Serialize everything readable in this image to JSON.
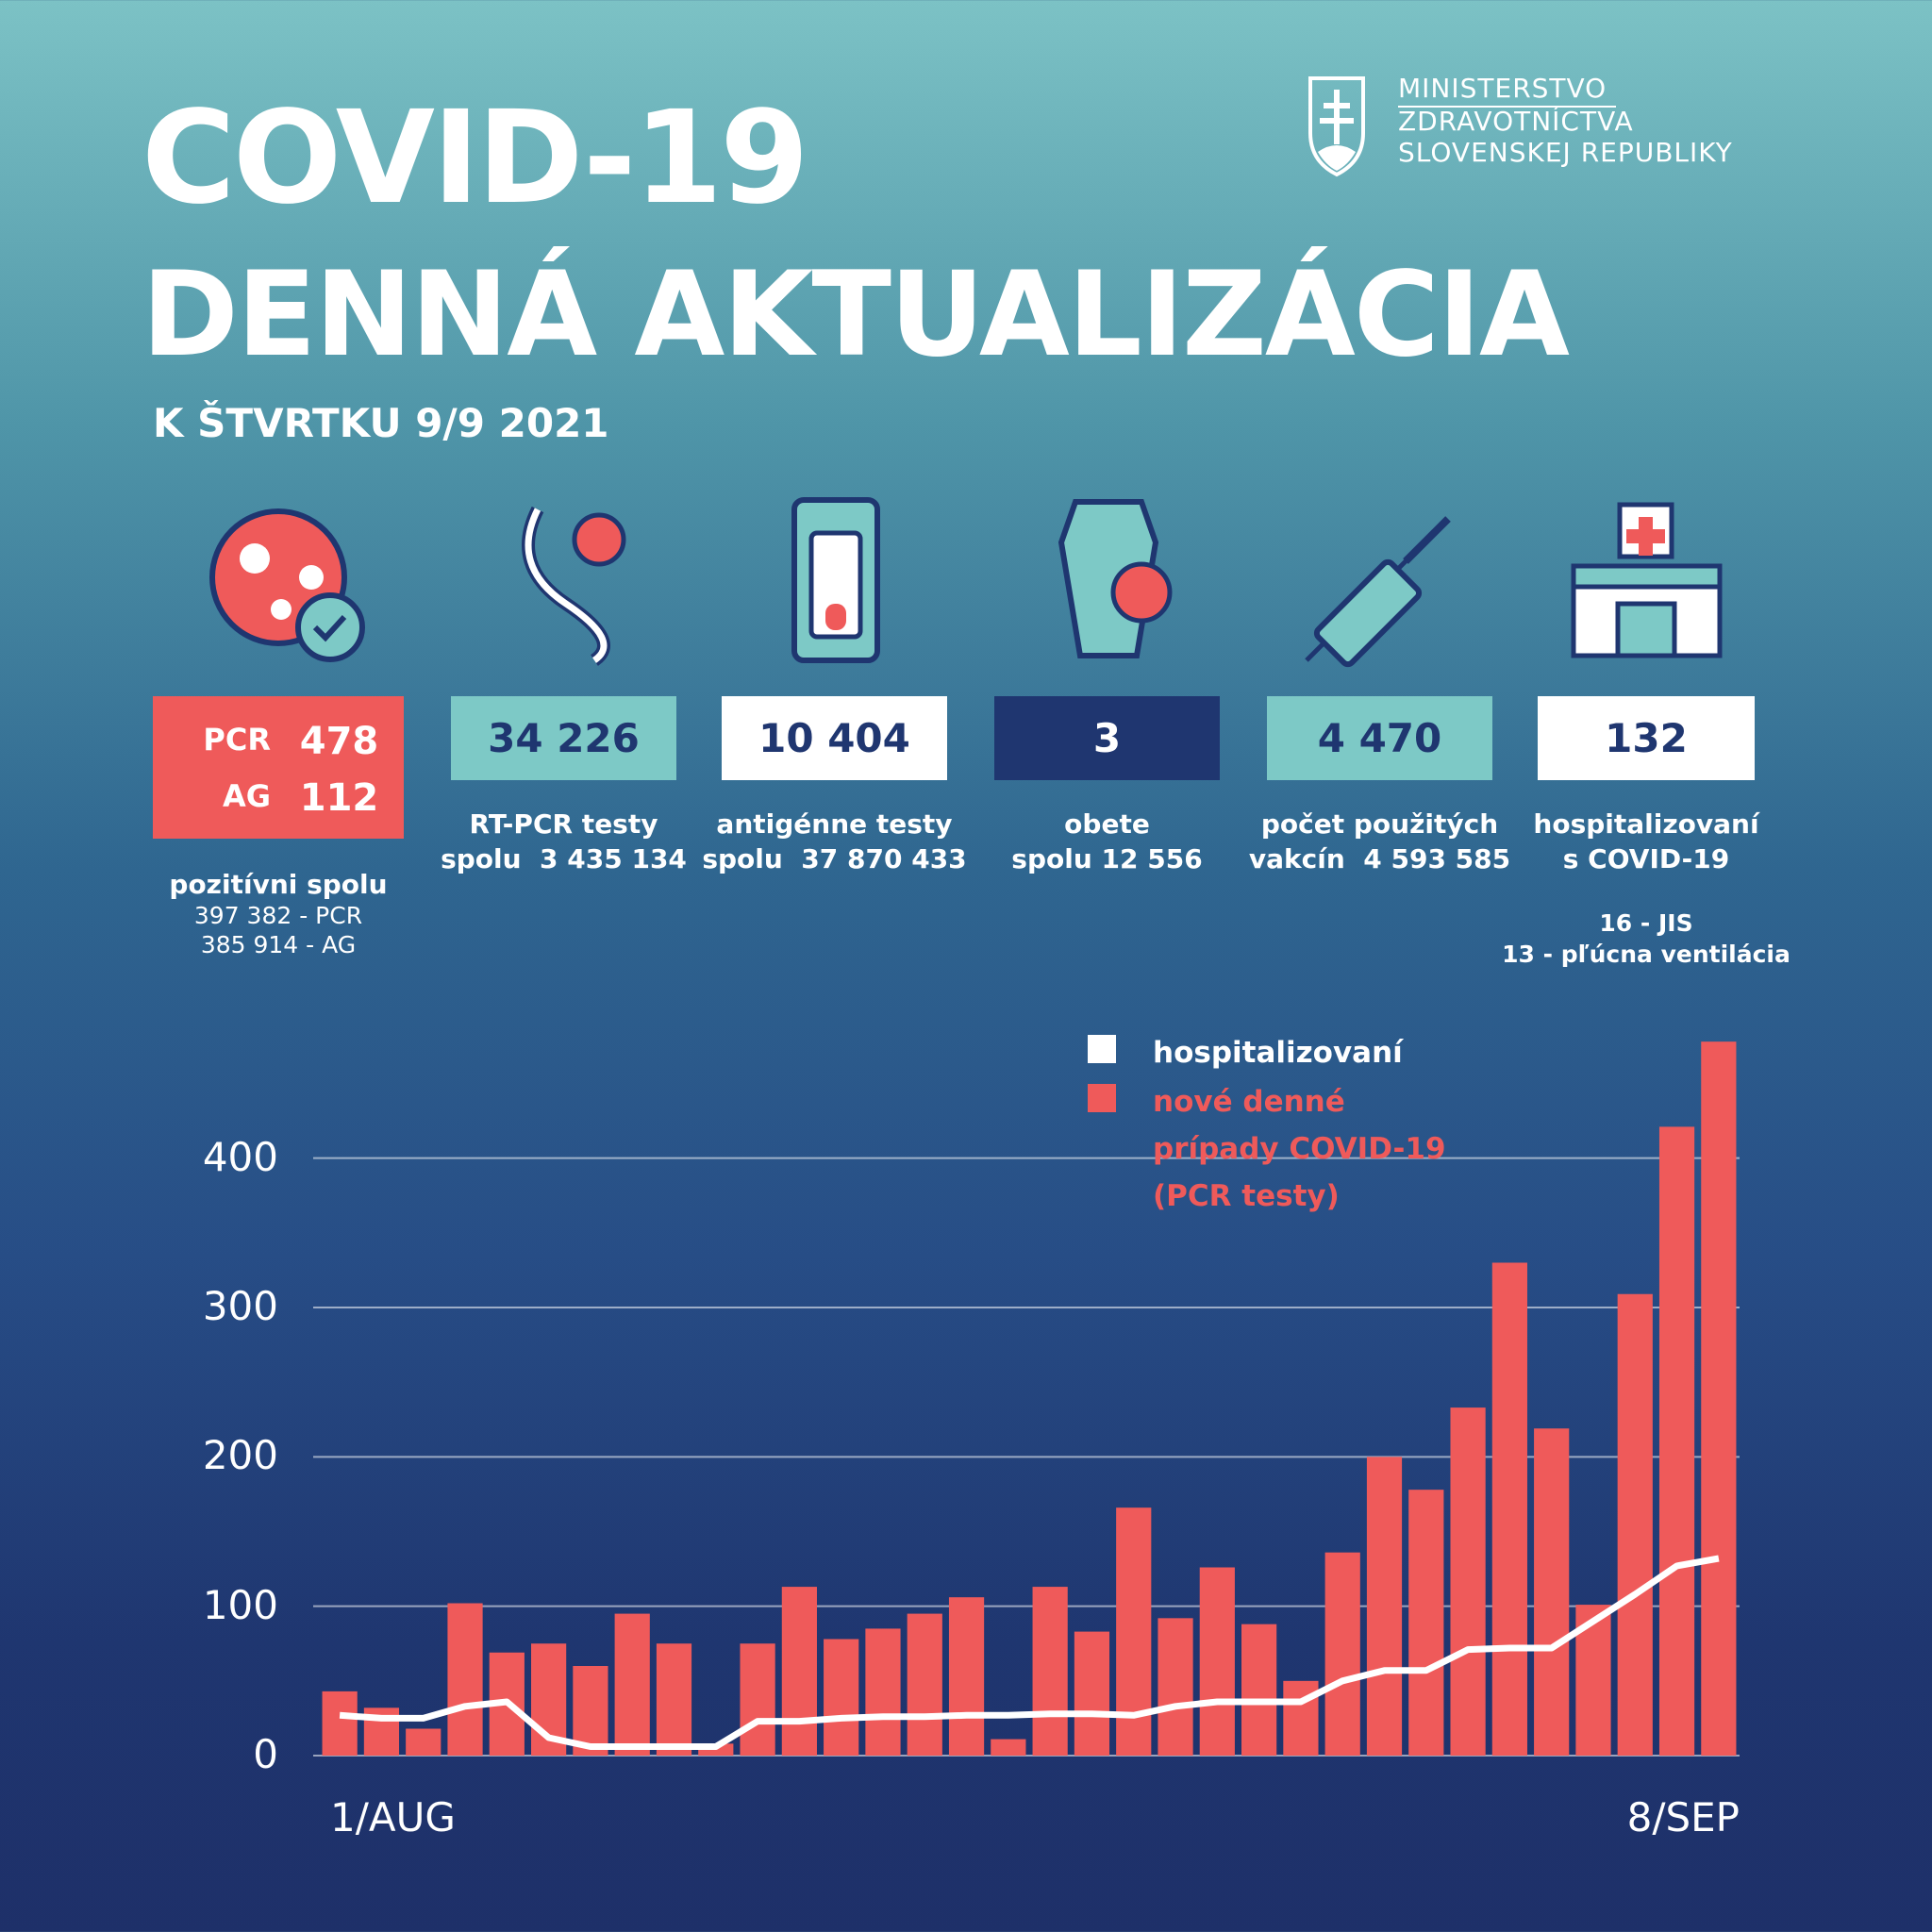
{
  "header": {
    "title": "COVID-19",
    "subtitle": "DENNÁ AKTUALIZÁCIA",
    "date": "K ŠTVRTKU 9/9 2021",
    "ministry": [
      "MINISTERSTVO",
      "ZDRAVOTNÍCTVA",
      "SLOVENSKEJ REPUBLIKY"
    ]
  },
  "stats": [
    {
      "rows": [
        {
          "label": "PCR",
          "value": "478"
        },
        {
          "label": "AG",
          "value": "112"
        }
      ],
      "caption": [
        "pozitívni spolu",
        "397 382 - PCR",
        "385 914 - AG"
      ]
    },
    {
      "value": "34 226",
      "caption": [
        "RT-PCR testy",
        "spolu  3 435 134"
      ]
    },
    {
      "value": "10 404",
      "caption": [
        "antigénne testy",
        "spolu  37 870 433"
      ]
    },
    {
      "value": "3",
      "caption": [
        "obete",
        "spolu 12 556"
      ]
    },
    {
      "value": "4 470",
      "caption": [
        "počet použitých",
        "vakcín  4 593 585"
      ]
    },
    {
      "value": "132",
      "caption": [
        "hospitalizovaní",
        "s COVID-19"
      ],
      "note": [
        "16 - JIS",
        "13 - pľúcna ventilácia"
      ]
    }
  ],
  "chart_data": {
    "type": "bar",
    "categories": [
      "1/AUG",
      null,
      null,
      null,
      null,
      null,
      null,
      null,
      null,
      null,
      null,
      null,
      null,
      null,
      null,
      null,
      null,
      null,
      null,
      null,
      null,
      null,
      null,
      null,
      null,
      null,
      null,
      null,
      null,
      null,
      null,
      null,
      null,
      "8/SEP"
    ],
    "series": [
      {
        "name": "hospitalizovaní",
        "type": "line",
        "color": "#ffffff",
        "values": [
          27,
          25,
          25,
          33,
          36,
          12,
          6,
          6,
          6,
          6,
          23,
          23,
          25,
          26,
          26,
          27,
          27,
          28,
          28,
          27,
          33,
          36,
          36,
          36,
          50,
          57,
          57,
          71,
          72,
          72,
          90,
          108,
          127,
          132
        ]
      },
      {
        "name": "nové denné prípady COVID-19 (PCR testy)",
        "type": "bar",
        "color": "#ef5a5a",
        "values": [
          43,
          32,
          18,
          102,
          69,
          75,
          60,
          95,
          75,
          8,
          75,
          113,
          78,
          85,
          95,
          106,
          11,
          113,
          83,
          166,
          92,
          126,
          88,
          50,
          136,
          200,
          178,
          233,
          330,
          219,
          101,
          309,
          421,
          478
        ]
      }
    ],
    "ylim": [
      0,
      480
    ],
    "yticks": [
      0,
      100,
      200,
      300,
      400
    ],
    "grid": true
  }
}
